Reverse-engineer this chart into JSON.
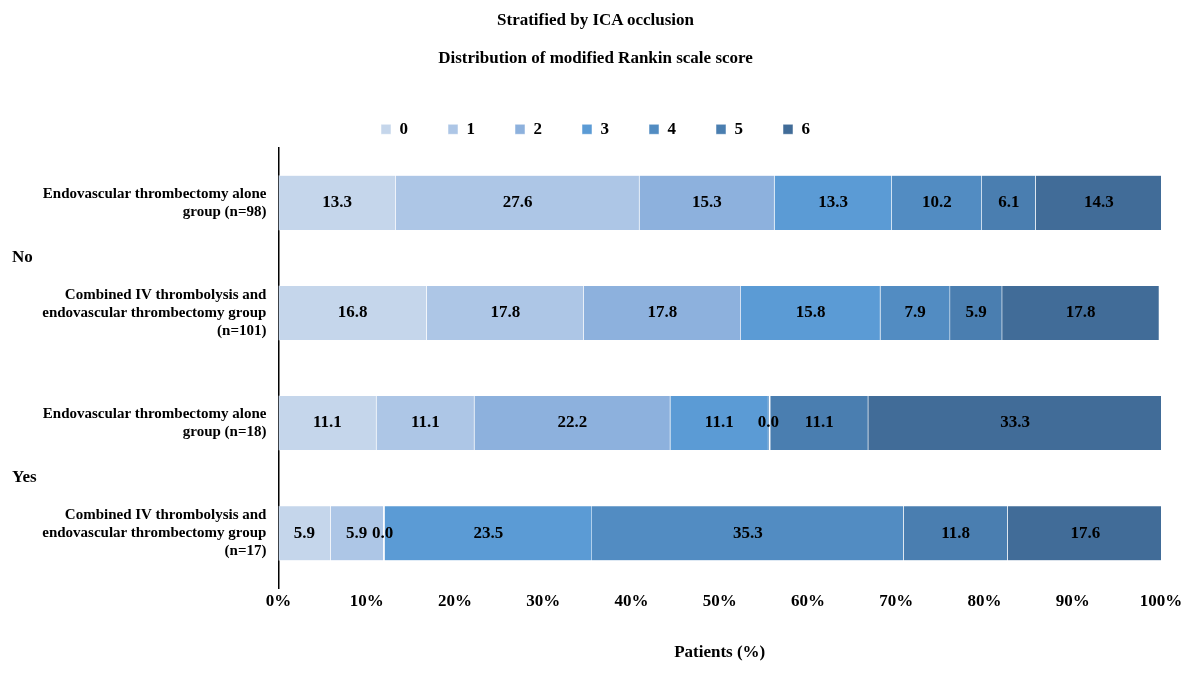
{
  "chart_data": {
    "type": "bar",
    "orientation": "horizontal",
    "stacked": true,
    "title": "Stratified by ICA occlusion",
    "subtitle": "Distribution of modified Rankin scale score",
    "xlabel": "Patients (%)",
    "categories": [
      "Endovascular thrombectomy alone group (n=98)",
      "Combined IV thrombolysis and endovascular thrombectomy group (n=101)",
      "Endovascular thrombectomy alone group (n=18)",
      "Combined IV thrombolysis and endovascular thrombectomy group (n=17)"
    ],
    "series": [
      {
        "name": "0",
        "color": "#c5d6eb",
        "values": [
          13.3,
          16.8,
          11.1,
          5.9
        ],
        "value_labels": [
          "13.3",
          "16.8",
          "11.1",
          "5.9"
        ]
      },
      {
        "name": "1",
        "color": "#adc6e6",
        "values": [
          27.6,
          17.8,
          11.1,
          5.9
        ],
        "value_labels": [
          "27.6",
          "17.8",
          "11.1",
          "5.9"
        ]
      },
      {
        "name": "2",
        "color": "#8db1dd",
        "values": [
          15.3,
          17.8,
          22.2,
          0.0
        ],
        "value_labels": [
          "15.3",
          "17.8",
          "22.2",
          "0.0"
        ]
      },
      {
        "name": "3",
        "color": "#5b9bd5",
        "values": [
          13.3,
          15.8,
          11.1,
          23.5
        ],
        "value_labels": [
          "13.3",
          "15.8",
          "11.1",
          "23.5"
        ]
      },
      {
        "name": "4",
        "color": "#528cc2",
        "values": [
          10.2,
          7.9,
          0.0,
          35.3
        ],
        "value_labels": [
          "10.2",
          "7.9",
          "0.0",
          "35.3"
        ]
      },
      {
        "name": "5",
        "color": "#4a7eb0",
        "values": [
          6.1,
          5.9,
          11.1,
          11.8
        ],
        "value_labels": [
          "6.1",
          "5.9",
          "11.1",
          "11.8"
        ]
      },
      {
        "name": "6",
        "color": "#416c98",
        "values": [
          14.3,
          17.8,
          33.3,
          17.6
        ],
        "value_labels": [
          "14.3",
          "17.8",
          "33.3",
          "17.6"
        ]
      }
    ],
    "xlim": [
      0,
      100
    ],
    "xticks": [
      {
        "value": 0,
        "label": "0%"
      },
      {
        "value": 10,
        "label": "10%"
      },
      {
        "value": 20,
        "label": "20%"
      },
      {
        "value": 30,
        "label": "30%"
      },
      {
        "value": 40,
        "label": "40%"
      },
      {
        "value": 50,
        "label": "50%"
      },
      {
        "value": 60,
        "label": "60%"
      },
      {
        "value": 70,
        "label": "70%"
      },
      {
        "value": 80,
        "label": "80%"
      },
      {
        "value": 90,
        "label": "90%"
      },
      {
        "value": 100,
        "label": "100%"
      }
    ],
    "annotations": [
      "No",
      "Yes"
    ],
    "grid": false,
    "legend": "top"
  }
}
